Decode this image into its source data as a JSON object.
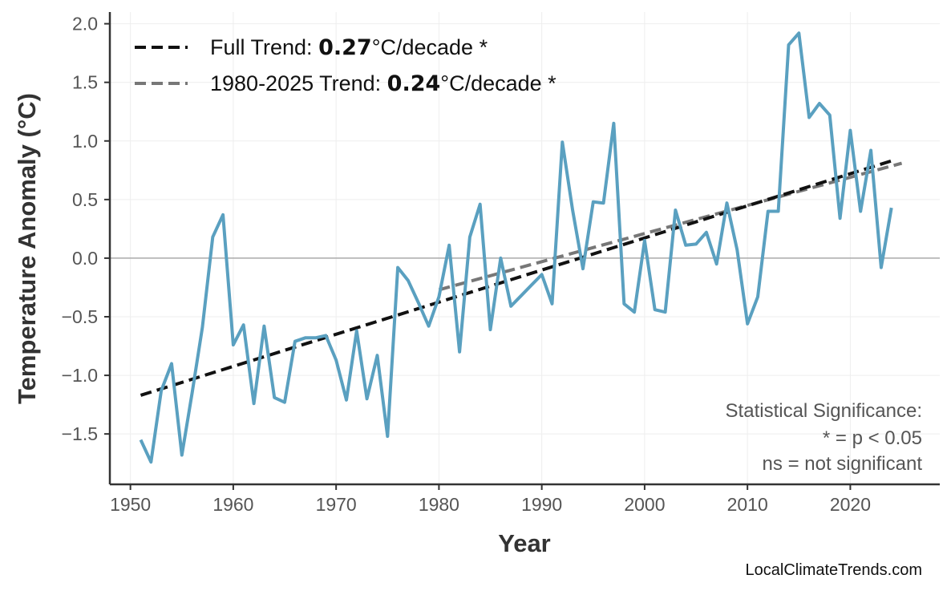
{
  "chart_data": {
    "type": "line",
    "xlabel": "Year",
    "ylabel": "Temperature Anomaly (°C)",
    "xlim": [
      1948,
      2028.7
    ],
    "ylim": [
      -1.93,
      2.1
    ],
    "grid": true,
    "x_ticks": [
      1950,
      1960,
      1970,
      1980,
      1990,
      2000,
      2010,
      2020
    ],
    "y_ticks": [
      -1.5,
      -1.0,
      -0.5,
      0.0,
      0.5,
      1.0,
      1.5,
      2.0
    ],
    "y_tick_labels": [
      "−1.5",
      "−1.0",
      "−0.5",
      "0.0",
      "0.5",
      "1.0",
      "1.5",
      "2.0"
    ],
    "series": [
      {
        "color": "#5aa0c0",
        "x": [
          1951,
          1952,
          1953,
          1954,
          1955,
          1956,
          1957,
          1958,
          1959,
          1960,
          1961,
          1962,
          1963,
          1964,
          1965,
          1966,
          1967,
          1968,
          1969,
          1970,
          1971,
          1972,
          1973,
          1974,
          1975,
          1976,
          1977,
          1978,
          1979,
          1980,
          1981,
          1982,
          1983,
          1984,
          1985,
          1986,
          1987,
          1988,
          1989,
          1990,
          1991,
          1992,
          1993,
          1994,
          1995,
          1996,
          1997,
          1998,
          1999,
          2000,
          2001,
          2002,
          2003,
          2004,
          2005,
          2006,
          2007,
          2008,
          2009,
          2010,
          2011,
          2012,
          2013,
          2014,
          2015,
          2016,
          2017,
          2018,
          2019,
          2020,
          2021,
          2022,
          2023,
          2024
        ],
        "y": [
          -1.55,
          -1.74,
          -1.13,
          -0.9,
          -1.68,
          -1.15,
          -0.59,
          0.18,
          0.37,
          -0.74,
          -0.57,
          -1.24,
          -0.58,
          -1.19,
          -1.23,
          -0.71,
          -0.68,
          -0.68,
          -0.66,
          -0.87,
          -1.21,
          -0.62,
          -1.2,
          -0.83,
          -1.52,
          -0.08,
          -0.19,
          -0.38,
          -0.58,
          -0.33,
          0.11,
          -0.8,
          0.18,
          0.46,
          -0.61,
          0.0,
          -0.41,
          -0.32,
          -0.23,
          -0.14,
          -0.39,
          0.99,
          0.41,
          -0.09,
          0.48,
          0.47,
          1.15,
          -0.39,
          -0.46,
          0.15,
          -0.44,
          -0.46,
          0.41,
          0.11,
          0.12,
          0.22,
          -0.05,
          0.47,
          0.07,
          -0.56,
          -0.33,
          0.4,
          0.4,
          1.82,
          1.92,
          1.2,
          1.32,
          1.22,
          0.34,
          1.09,
          0.4,
          0.92,
          -0.08,
          0.43
        ]
      }
    ],
    "trend_lines": [
      {
        "name_prefix": "Full Trend: ",
        "rate": "0.27",
        "suffix": "°C/decade *",
        "color": "#111111",
        "x": [
          1951,
          2024
        ],
        "y": [
          -1.17,
          0.83
        ]
      },
      {
        "name_prefix": "1980-2025 Trend: ",
        "rate": "0.24",
        "suffix": "°C/decade *",
        "color": "#777777",
        "x": [
          1980,
          2025
        ],
        "y": [
          -0.27,
          0.81
        ]
      }
    ],
    "legend_position": "top-left",
    "annotation": [
      "Statistical Significance:",
      "* = p < 0.05",
      "ns = not significant"
    ]
  },
  "credit": "LocalClimateTrends.com"
}
